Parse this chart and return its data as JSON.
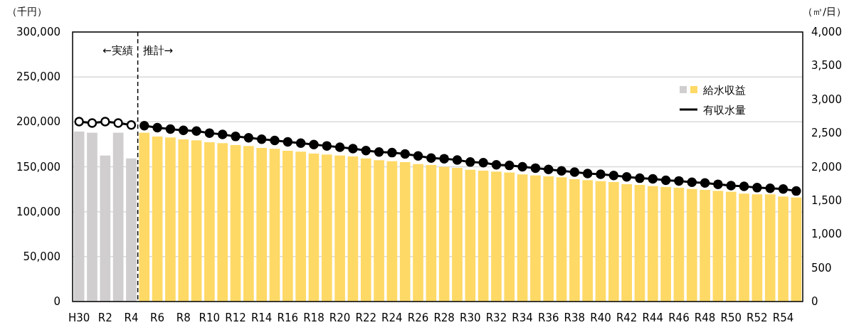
{
  "chart_data": {
    "type": "bar",
    "ylabel": "（千円）",
    "y2label": "（㎥/日）",
    "categories": [
      "H30",
      null,
      "R2",
      null,
      "R4",
      null,
      "R6",
      null,
      "R8",
      null,
      "R10",
      null,
      "R12",
      null,
      "R14",
      null,
      "R16",
      null,
      "R18",
      null,
      "R20",
      null,
      "R22",
      null,
      "R24",
      null,
      "R26",
      null,
      "R28",
      null,
      "R30",
      null,
      "R32",
      null,
      "R34",
      null,
      "R36",
      null,
      "R38",
      null,
      "R40",
      null,
      "R42",
      null,
      "R44",
      null,
      "R46",
      null,
      "R48",
      null,
      "R50",
      null,
      "R52",
      null,
      "R54",
      null
    ],
    "series": [
      {
        "name": "給水収益",
        "colors": [
          "#d0cece",
          "#d0cece",
          "#d0cece",
          "#d0cece",
          "#d0cece",
          "#ffd966",
          "#ffd966",
          "#ffd966",
          "#ffd966",
          "#ffd966",
          "#ffd966",
          "#ffd966",
          "#ffd966",
          "#ffd966",
          "#ffd966",
          "#ffd966",
          "#ffd966",
          "#ffd966",
          "#ffd966",
          "#ffd966",
          "#ffd966",
          "#ffd966",
          "#ffd966",
          "#ffd966",
          "#ffd966",
          "#ffd966",
          "#ffd966",
          "#ffd966",
          "#ffd966",
          "#ffd966",
          "#ffd966",
          "#ffd966",
          "#ffd966",
          "#ffd966",
          "#ffd966",
          "#ffd966",
          "#ffd966",
          "#ffd966",
          "#ffd966",
          "#ffd966",
          "#ffd966",
          "#ffd966",
          "#ffd966",
          "#ffd966",
          "#ffd966",
          "#ffd966",
          "#ffd966",
          "#ffd966",
          "#ffd966",
          "#ffd966",
          "#ffd966",
          "#ffd966",
          "#ffd966",
          "#ffd966",
          "#ffd966",
          "#ffd966"
        ],
        "values": [
          189200,
          187900,
          162500,
          187900,
          159300,
          187900,
          183700,
          182600,
          180500,
          179400,
          177300,
          176300,
          174200,
          173100,
          171000,
          170000,
          167800,
          166800,
          164700,
          163600,
          162500,
          161500,
          159300,
          157300,
          156200,
          155200,
          153000,
          152000,
          149900,
          148800,
          146700,
          145700,
          144600,
          143600,
          141500,
          140400,
          139300,
          138300,
          136200,
          135100,
          134000,
          133000,
          130600,
          129800,
          128500,
          127500,
          126700,
          125300,
          124300,
          123200,
          122200,
          120100,
          119300,
          119300,
          116900,
          115800
        ]
      },
      {
        "name": "有収水量",
        "type": "line",
        "axis": "y2",
        "color": "#000000",
        "marker": "circle",
        "values": [
          null,
          null,
          null,
          null,
          null,
          2610,
          2580,
          2560,
          2540,
          2530,
          2500,
          2480,
          2450,
          2430,
          2410,
          2390,
          2370,
          2350,
          2330,
          2310,
          2290,
          2270,
          2240,
          2220,
          2210,
          2190,
          2160,
          2130,
          2120,
          2100,
          2070,
          2060,
          2030,
          2020,
          2000,
          1980,
          1960,
          1940,
          1920,
          1900,
          1890,
          1870,
          1850,
          1830,
          1820,
          1800,
          1790,
          1770,
          1760,
          1740,
          1720,
          1710,
          1690,
          1680,
          1670,
          1640
        ]
      },
      {
        "type": "line",
        "axis": "y2",
        "color": "#000000",
        "marker": "circle",
        "values": [
          2670,
          2650,
          2670,
          2650,
          2620,
          null,
          null,
          null,
          null,
          null,
          null,
          null,
          null,
          null,
          null,
          null,
          null,
          null,
          null,
          null,
          null,
          null,
          null,
          null,
          null,
          null,
          null,
          null,
          null,
          null,
          null,
          null,
          null,
          null,
          null,
          null,
          null,
          null,
          null,
          null,
          null,
          null,
          null,
          null,
          null,
          null,
          null,
          null,
          null,
          null,
          null,
          null,
          null,
          null,
          null,
          null
        ]
      }
    ],
    "ylim": [
      0,
      300000
    ],
    "yticks": [
      0,
      {
        "value": 50000,
        "label": "50,000"
      },
      {
        "value": 100000,
        "label": "100,000"
      },
      {
        "value": 150000,
        "label": "150,000"
      },
      {
        "value": 200000,
        "label": "200,000"
      },
      {
        "value": 250000,
        "label": "250,000"
      },
      {
        "value": 300000,
        "label": "300,000"
      }
    ],
    "y2lim": [
      0,
      4000
    ],
    "y2ticks": [
      0,
      500,
      {
        "value": 1000,
        "label": "1,000"
      },
      {
        "value": 1500,
        "label": "1,500"
      },
      {
        "value": 2000,
        "label": "2,000"
      },
      {
        "value": 2500,
        "label": "2,500"
      },
      {
        "value": 3000,
        "label": "3,000"
      },
      {
        "value": 3500,
        "label": "3,500"
      },
      {
        "value": 4000,
        "label": "4,000"
      }
    ],
    "grid": "y",
    "legend": "top right",
    "annotations": [
      "←実績",
      "推計→"
    ]
  }
}
